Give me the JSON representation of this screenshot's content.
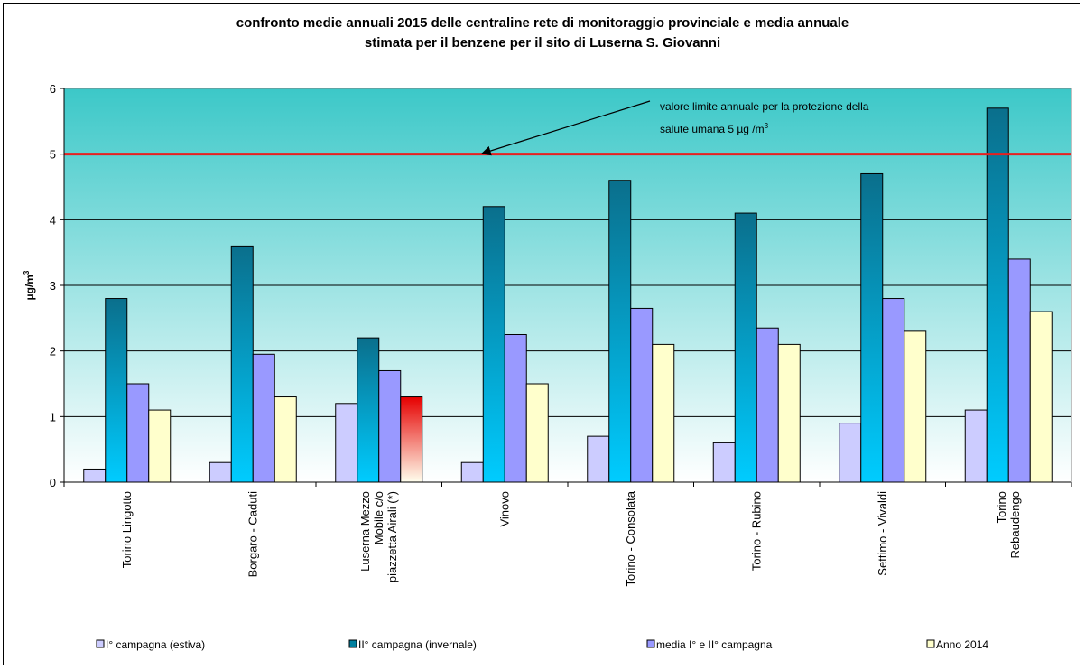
{
  "chart_data": {
    "type": "bar",
    "title_line1": "confronto medie annuali 2015 delle centraline rete di monitoraggio provinciale e media annuale",
    "title_line2": "stimata  per il benzene per il sito di Luserna S. Giovanni",
    "ylabel": "µg/m3",
    "ylim": [
      0,
      6
    ],
    "yticks": [
      "0",
      "1",
      "2",
      "3",
      "4",
      "5",
      "6"
    ],
    "categories": [
      [
        "Torino Lingotto"
      ],
      [
        "Borgaro - Caduti"
      ],
      [
        "Luserna Mezzo",
        "Mobile c/o",
        "piazzetta Airali (*)"
      ],
      [
        "Vinovo"
      ],
      [
        "Torino - Consolata"
      ],
      [
        "Torino - Rubino"
      ],
      [
        "Settimo - Vivaldi"
      ],
      [
        "Torino",
        "Rebaudengo"
      ]
    ],
    "series": [
      {
        "name": "I° campagna (estiva)",
        "values": [
          0.2,
          0.3,
          1.2,
          0.3,
          0.7,
          0.6,
          0.9,
          1.1
        ],
        "color": "#ccccff"
      },
      {
        "name": "II° campagna (invernale)",
        "values": [
          2.8,
          3.6,
          2.2,
          4.2,
          4.6,
          4.1,
          4.7,
          5.7
        ],
        "color": "#007fa0"
      },
      {
        "name": "media I° e II° campagna",
        "values": [
          1.5,
          1.95,
          1.7,
          2.25,
          2.65,
          2.35,
          2.8,
          3.4
        ],
        "color": "#9999ff"
      },
      {
        "name": "Anno 2014",
        "values": [
          1.1,
          1.3,
          1.3,
          1.5,
          2.1,
          2.1,
          2.3,
          2.6
        ],
        "color": "#ffffcc"
      }
    ],
    "highlight": {
      "category_index": 2,
      "series_index": 3,
      "color": "#e60000"
    },
    "limit_line": {
      "value": 5,
      "color": "#e62020"
    },
    "annotation": {
      "line1": "valore limite annuale per la protezione della",
      "line2": "salute umana 5 µg /m3"
    },
    "plot_background": {
      "top": "#3cc8c8",
      "bottom": "#ffffff"
    },
    "grid": true,
    "legend_position": "bottom"
  }
}
